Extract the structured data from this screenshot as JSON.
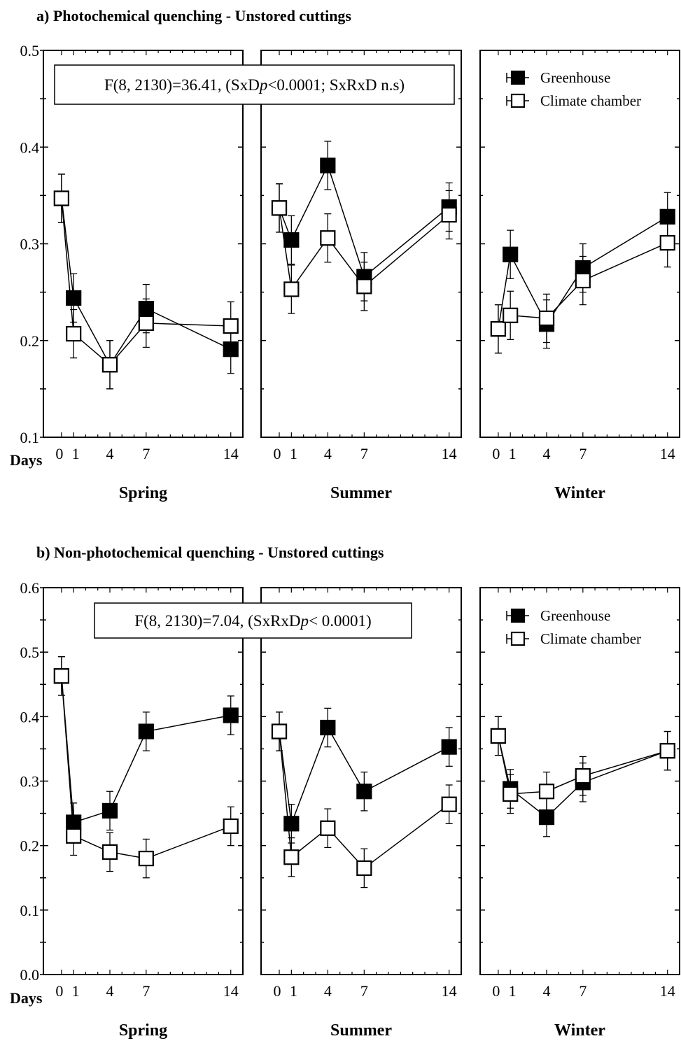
{
  "chart_data": [
    {
      "type": "line",
      "title": "a) Photochemical quenching - Unstored cuttings",
      "xlabel": "Days",
      "ylabel": "",
      "ylim": [
        0.1,
        0.5
      ],
      "yticks": [
        "0.1",
        "0.2",
        "0.3",
        "0.4",
        "0.5"
      ],
      "ytick_values": [
        0.1,
        0.2,
        0.3,
        0.4,
        0.5
      ],
      "xticks": [
        0,
        1,
        4,
        7,
        14
      ],
      "xtick_labels": [
        "0",
        "1",
        "4",
        "7",
        "14"
      ],
      "xlim": [
        -1.5,
        15
      ],
      "statistic": {
        "text": "F(8, 2130)=36.41, (SxD",
        "p": "p",
        "rest": "<0.0001; SxRxD n.s)",
        "panel": 0
      },
      "legend": {
        "panel": 2,
        "placement": "top-right",
        "entries": [
          "Greenhouse",
          "Climate chamber"
        ]
      },
      "panels": [
        {
          "label": "Spring",
          "series": [
            {
              "name": "Greenhouse",
              "fill": "#000000",
              "x": [
                0,
                1,
                4,
                7,
                14
              ],
              "y": [
                0.347,
                0.244,
                0.175,
                0.233,
                0.191
              ],
              "err": [
                0.025,
                0.025,
                0.025,
                0.025,
                0.025
              ]
            },
            {
              "name": "Climate chamber",
              "fill": "#ffffff",
              "x": [
                0,
                1,
                4,
                7,
                14
              ],
              "y": [
                0.347,
                0.207,
                0.175,
                0.218,
                0.215
              ],
              "err": [
                0.025,
                0.025,
                0.025,
                0.025,
                0.025
              ]
            }
          ]
        },
        {
          "label": "Summer",
          "series": [
            {
              "name": "Greenhouse",
              "fill": "#000000",
              "x": [
                0,
                1,
                4,
                7,
                14
              ],
              "y": [
                0.337,
                0.304,
                0.381,
                0.266,
                0.338
              ],
              "err": [
                0.025,
                0.025,
                0.025,
                0.025,
                0.025
              ]
            },
            {
              "name": "Climate chamber",
              "fill": "#ffffff",
              "x": [
                0,
                1,
                4,
                7,
                14
              ],
              "y": [
                0.337,
                0.253,
                0.306,
                0.256,
                0.33
              ],
              "err": [
                0.025,
                0.025,
                0.025,
                0.025,
                0.025
              ]
            }
          ]
        },
        {
          "label": "Winter",
          "series": [
            {
              "name": "Greenhouse",
              "fill": "#000000",
              "x": [
                0,
                1,
                4,
                7,
                14
              ],
              "y": [
                0.212,
                0.289,
                0.217,
                0.275,
                0.328
              ],
              "err": [
                0.025,
                0.025,
                0.025,
                0.025,
                0.025
              ]
            },
            {
              "name": "Climate chamber",
              "fill": "#ffffff",
              "x": [
                0,
                1,
                4,
                7,
                14
              ],
              "y": [
                0.212,
                0.226,
                0.223,
                0.262,
                0.301
              ],
              "err": [
                0.025,
                0.025,
                0.025,
                0.025,
                0.025
              ]
            }
          ]
        }
      ]
    },
    {
      "type": "line",
      "title": "b) Non-photochemical quenching - Unstored cuttings",
      "xlabel": "Days",
      "ylabel": "",
      "ylim": [
        0.0,
        0.6
      ],
      "yticks": [
        "0.0",
        "0.1",
        "0.2",
        "0.3",
        "0.4",
        "0.5",
        "0.6"
      ],
      "ytick_values": [
        0.0,
        0.1,
        0.2,
        0.3,
        0.4,
        0.5,
        0.6
      ],
      "xticks": [
        0,
        1,
        4,
        7,
        14
      ],
      "xtick_labels": [
        "0",
        "1",
        "4",
        "7",
        "14"
      ],
      "xlim": [
        -1.5,
        15
      ],
      "statistic": {
        "text": "F(8, 2130)=7.04, (SxRxD",
        "p": "p",
        "rest": "< 0.0001)",
        "panel": 0
      },
      "legend": {
        "panel": 2,
        "placement": "top-right",
        "entries": [
          "Greenhouse",
          "Climate chamber"
        ]
      },
      "panels": [
        {
          "label": "Spring",
          "series": [
            {
              "name": "Greenhouse",
              "fill": "#000000",
              "x": [
                0,
                1,
                4,
                7,
                14
              ],
              "y": [
                0.463,
                0.236,
                0.254,
                0.377,
                0.402
              ],
              "err": [
                0.03,
                0.03,
                0.03,
                0.03,
                0.03
              ]
            },
            {
              "name": "Climate chamber",
              "fill": "#ffffff",
              "x": [
                0,
                1,
                4,
                7,
                14
              ],
              "y": [
                0.463,
                0.215,
                0.19,
                0.18,
                0.23
              ],
              "err": [
                0.03,
                0.03,
                0.03,
                0.03,
                0.03
              ]
            }
          ]
        },
        {
          "label": "Summer",
          "series": [
            {
              "name": "Greenhouse",
              "fill": "#000000",
              "x": [
                0,
                1,
                4,
                7,
                14
              ],
              "y": [
                0.377,
                0.234,
                0.383,
                0.284,
                0.353
              ],
              "err": [
                0.03,
                0.03,
                0.03,
                0.03,
                0.03
              ]
            },
            {
              "name": "Climate chamber",
              "fill": "#ffffff",
              "x": [
                0,
                1,
                4,
                7,
                14
              ],
              "y": [
                0.377,
                0.182,
                0.227,
                0.165,
                0.264
              ],
              "err": [
                0.03,
                0.03,
                0.03,
                0.03,
                0.03
              ]
            }
          ]
        },
        {
          "label": "Winter",
          "series": [
            {
              "name": "Greenhouse",
              "fill": "#000000",
              "x": [
                0,
                1,
                4,
                7,
                14
              ],
              "y": [
                0.37,
                0.288,
                0.244,
                0.298,
                0.347
              ],
              "err": [
                0.03,
                0.03,
                0.03,
                0.03,
                0.03
              ]
            },
            {
              "name": "Climate chamber",
              "fill": "#ffffff",
              "x": [
                0,
                1,
                4,
                7,
                14
              ],
              "y": [
                0.37,
                0.28,
                0.284,
                0.308,
                0.347
              ],
              "err": [
                0.03,
                0.03,
                0.03,
                0.03,
                0.03
              ]
            }
          ]
        }
      ]
    }
  ]
}
